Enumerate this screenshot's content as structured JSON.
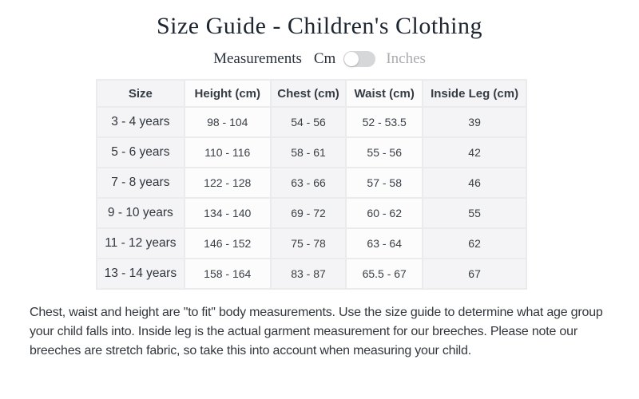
{
  "title": "Size Guide - Children's Clothing",
  "measurements": {
    "label": "Measurements",
    "unit_cm": "Cm",
    "unit_inches": "Inches",
    "selected_unit": "Cm",
    "toggle_position": "left"
  },
  "table": {
    "columns": [
      "Size",
      "Height (cm)",
      "Chest (cm)",
      "Waist (cm)",
      "Inside Leg (cm)"
    ],
    "rows": [
      [
        "3 - 4 years",
        "98 - 104",
        "54 - 56",
        "52 - 53.5",
        "39"
      ],
      [
        "5 - 6 years",
        "110 - 116",
        "58 - 61",
        "55 - 56",
        "42"
      ],
      [
        "7 - 8 years",
        "122 - 128",
        "63 - 66",
        "57 - 58",
        "46"
      ],
      [
        "9 - 10 years",
        "134 - 140",
        "69 - 72",
        "60 - 62",
        "55"
      ],
      [
        "11 - 12 years",
        "146 - 152",
        "75 - 78",
        "63 - 64",
        "62"
      ],
      [
        "13 - 14 years",
        "158 - 164",
        "83 - 87",
        "65.5 - 67",
        "67"
      ]
    ]
  },
  "footer_note": "Chest, waist and height are \"to fit\" body measurements. Use the size guide to determine what age group your child falls into. Inside leg is the actual garment measurement for our breeches. Please note our breeches are stretch fabric, so take this into account when measuring your child.",
  "colors": {
    "title_text": "#1e2631",
    "muted_text": "#a9abae",
    "toggle_pill": "#d6d7d8",
    "cell_shaded": "#f4f4f6",
    "cell_plain": "#fcfcfd",
    "grid_gap": "#eaebed"
  }
}
